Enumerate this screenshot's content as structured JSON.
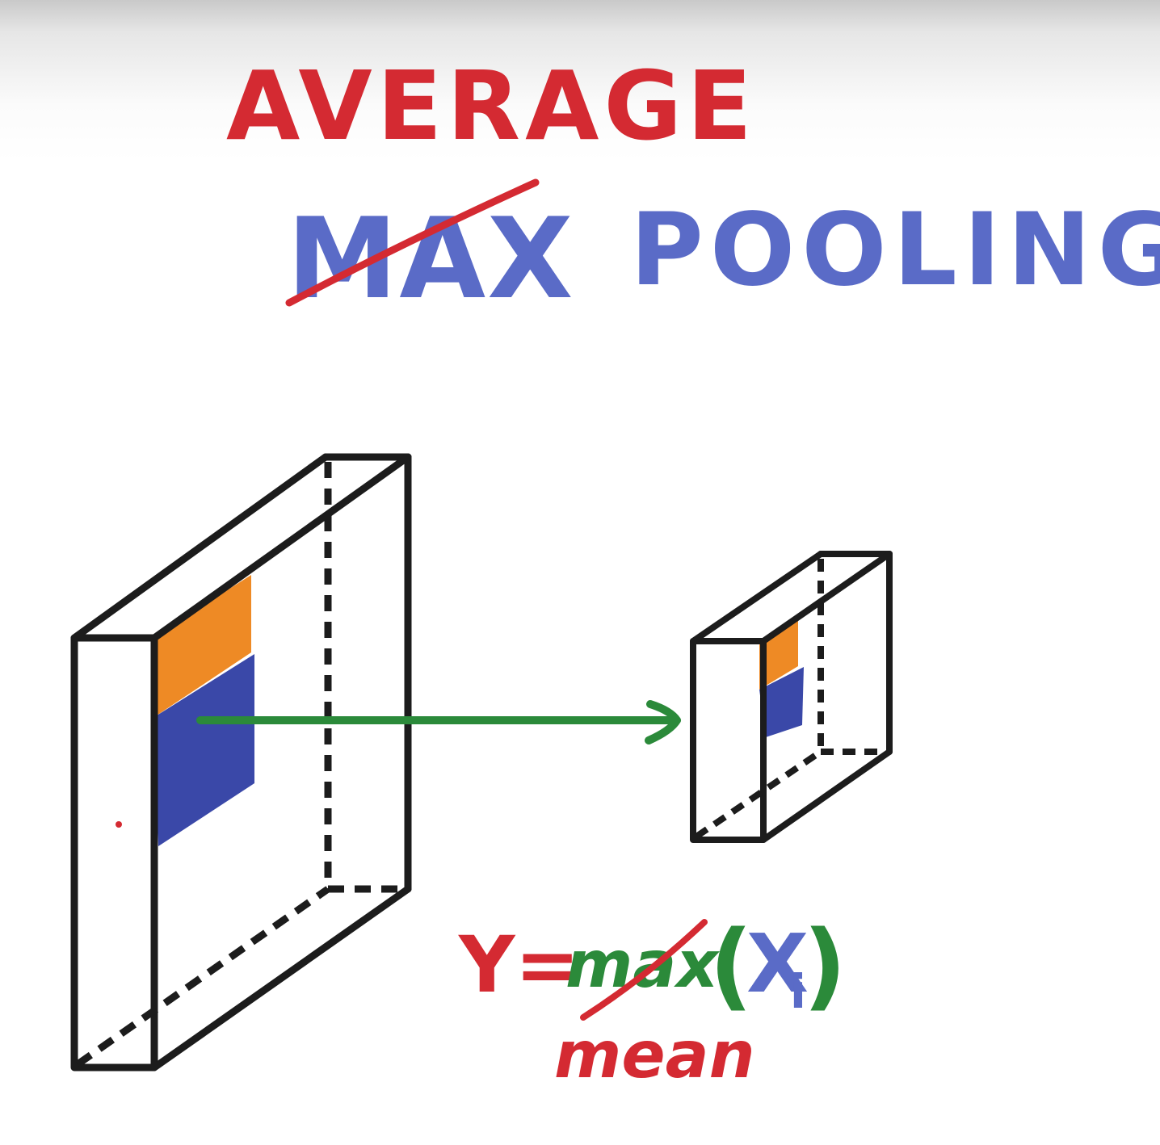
{
  "title": {
    "replacement_word": "AVERAGE",
    "struck_word": "MAX",
    "main_word": "POOLING"
  },
  "formula": {
    "lhs": "Y=",
    "struck_function": "max",
    "open_paren": "(",
    "arg": "X",
    "arg_subscript": "i",
    "close_paren": ")",
    "replacement_function": "mean"
  },
  "colors": {
    "red": "#d42a32",
    "blue": "#5a6bc7",
    "green": "#2b8a3a",
    "black": "#1c1c1c",
    "orange": "#ee8a25",
    "navy": "#3a48a8"
  }
}
